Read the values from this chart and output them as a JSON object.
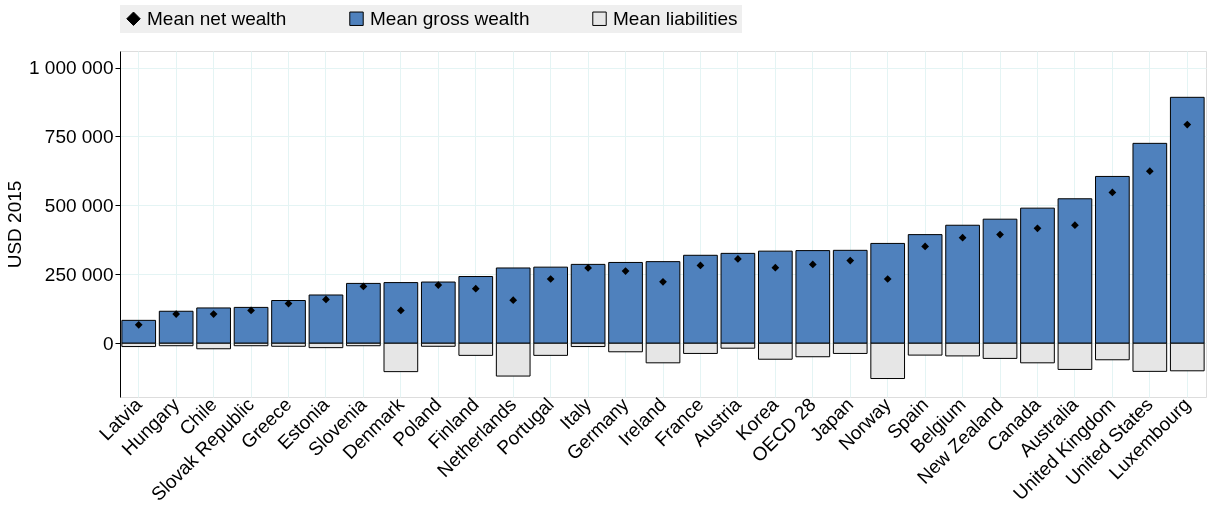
{
  "chart_data": {
    "type": "bar",
    "ylabel": "USD 2015",
    "categories": [
      "Latvia",
      "Hungary",
      "Chile",
      "Slovak Republic",
      "Greece",
      "Estonia",
      "Slovenia",
      "Denmark",
      "Poland",
      "Finland",
      "Netherlands",
      "Portugal",
      "Italy",
      "Germany",
      "Ireland",
      "France",
      "Austria",
      "Korea",
      "OECD 28",
      "Japan",
      "Norway",
      "Spain",
      "Belgium",
      "New Zealand",
      "Canada",
      "Australia",
      "United Kingdom",
      "United States",
      "Luxembourg"
    ],
    "series": [
      {
        "name": "Mean net wealth",
        "type": "scatter",
        "marker": "diamond",
        "color": "#000000",
        "values": [
          67000,
          106000,
          106000,
          119000,
          144000,
          159000,
          206000,
          119000,
          211000,
          198000,
          156000,
          233000,
          273000,
          262000,
          223000,
          282000,
          306000,
          274000,
          286000,
          300000,
          233000,
          351000,
          383000,
          394000,
          417000,
          428000,
          547000,
          624000,
          793000
        ]
      },
      {
        "name": "Mean gross wealth",
        "type": "bar",
        "color": "#4f81bd",
        "values": [
          83000,
          116000,
          128000,
          130000,
          155000,
          175000,
          217000,
          220000,
          222000,
          242000,
          273000,
          276000,
          286000,
          293000,
          296000,
          319000,
          326000,
          334000,
          336000,
          337000,
          362000,
          394000,
          428000,
          450000,
          490000,
          524000,
          605000,
          725000,
          892000
        ]
      },
      {
        "name": "Mean liabilities",
        "type": "bar",
        "color": "#e6e6e6",
        "values": [
          -12000,
          -9000,
          -20000,
          -9000,
          -11000,
          -16000,
          -9000,
          -103000,
          -11000,
          -44000,
          -119000,
          -44000,
          -12000,
          -31000,
          -71000,
          -37000,
          -18000,
          -58000,
          -49000,
          -37000,
          -128000,
          -43000,
          -46000,
          -55000,
          -71000,
          -95000,
          -60000,
          -102000,
          -100000
        ]
      }
    ],
    "ylim": [
      -195000,
      1060000
    ],
    "yticks": [
      {
        "value": 0,
        "label": "0"
      },
      {
        "value": 250000,
        "label": "250 000"
      },
      {
        "value": 500000,
        "label": "500 000"
      },
      {
        "value": 750000,
        "label": "750 000"
      },
      {
        "value": 1000000,
        "label": "1 000 000"
      }
    ],
    "grid": true,
    "legend": "top",
    "stacked": true
  }
}
